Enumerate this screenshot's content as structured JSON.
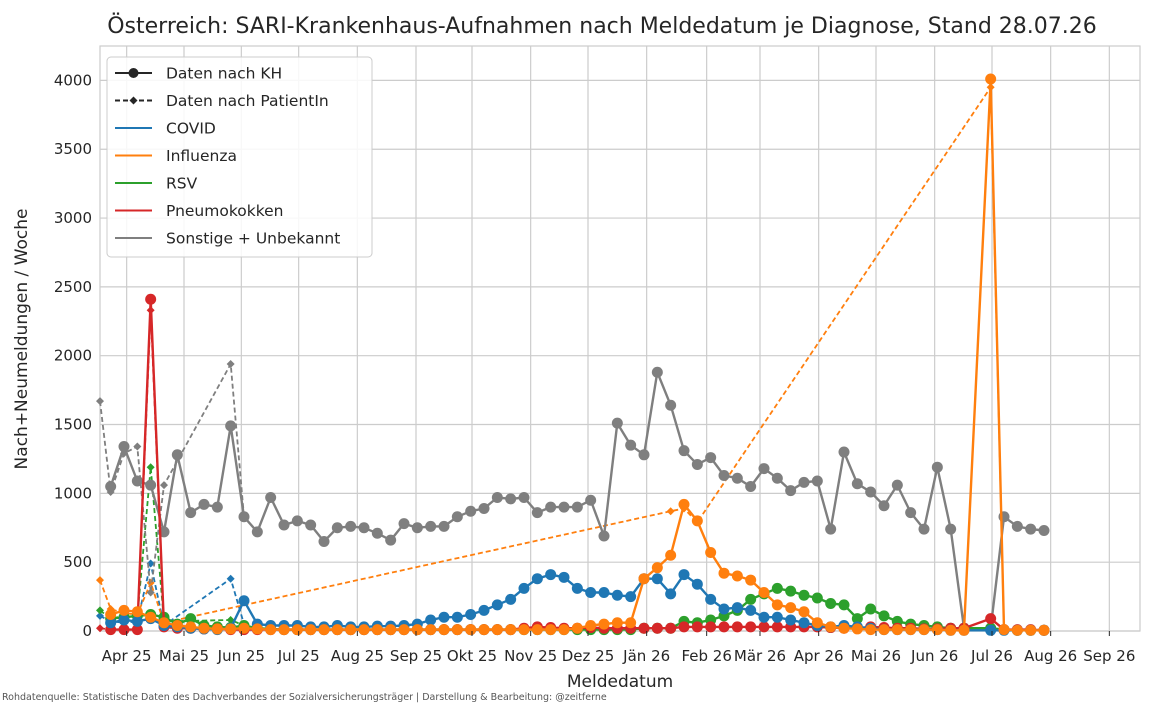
{
  "chart_data": {
    "type": "line",
    "title": "Österreich: SARI-Krankenhaus-Aufnahmen nach Meldedatum je Diagnose, Stand 28.07.26",
    "xlabel": "Meldedatum",
    "ylabel": "Nach+Neumeldungen / Woche",
    "ylim": [
      0,
      4250
    ],
    "y_ticks": [
      0,
      500,
      1000,
      1500,
      2000,
      2500,
      3000,
      3500,
      4000
    ],
    "x_ticks": [
      {
        "label": "Apr 25",
        "x": 2
      },
      {
        "label": "Mai 25",
        "x": 6.3
      },
      {
        "label": "Jun 25",
        "x": 10.6
      },
      {
        "label": "Jul 25",
        "x": 14.9
      },
      {
        "label": "Aug 25",
        "x": 19.3
      },
      {
        "label": "Sep 25",
        "x": 23.7
      },
      {
        "label": "Okt 25",
        "x": 27.9
      },
      {
        "label": "Nov 25",
        "x": 32.3
      },
      {
        "label": "Dez 25",
        "x": 36.6
      },
      {
        "label": "Jän 26",
        "x": 41.0
      },
      {
        "label": "Feb 26",
        "x": 45.5
      },
      {
        "label": "Mär 26",
        "x": 49.5
      },
      {
        "label": "Apr 26",
        "x": 53.9
      },
      {
        "label": "Mai 26",
        "x": 58.2
      },
      {
        "label": "Jun 26",
        "x": 62.6
      },
      {
        "label": "Jul 26",
        "x": 66.9
      },
      {
        "label": "Aug 26",
        "x": 71.3
      },
      {
        "label": "Sep 26",
        "x": 75.7
      }
    ],
    "xlim": [
      0,
      78
    ],
    "grid": true,
    "legend_position": "top-left",
    "series": [
      {
        "name": "COVID",
        "color": "#1f77b4",
        "style": "kh",
        "x": [
          0.8,
          1.8,
          2.8,
          3.8,
          4.8,
          5.8,
          6.8,
          7.8,
          8.8,
          9.8,
          10.8,
          11.8,
          12.8,
          13.8,
          14.8,
          15.8,
          16.8,
          17.8,
          18.8,
          19.8,
          20.8,
          21.8,
          22.8,
          23.8,
          24.8,
          25.8,
          26.8,
          27.8,
          28.8,
          29.8,
          30.8,
          31.8,
          32.8,
          33.8,
          34.8,
          35.8,
          36.8,
          37.8,
          38.8,
          39.8,
          40.8,
          41.8,
          42.8,
          43.8,
          44.8,
          45.8,
          46.8,
          47.8,
          48.8,
          49.8,
          50.8,
          51.8,
          52.8,
          53.8,
          54.8,
          55.8,
          56.8,
          57.8,
          58.8,
          59.8,
          60.8,
          61.8,
          62.8,
          63.8,
          64.8,
          66.8,
          67.8,
          68.8,
          69.8,
          70.8
        ],
        "values": [
          60,
          80,
          70,
          90,
          40,
          30,
          20,
          15,
          10,
          20,
          220,
          50,
          40,
          40,
          40,
          30,
          30,
          40,
          30,
          30,
          35,
          35,
          40,
          50,
          80,
          100,
          100,
          120,
          150,
          190,
          230,
          310,
          380,
          410,
          390,
          310,
          280,
          280,
          260,
          250,
          380,
          380,
          270,
          410,
          340,
          230,
          160,
          170,
          150,
          100,
          100,
          80,
          60,
          40,
          30,
          40,
          30,
          20,
          10,
          10,
          10,
          10,
          10,
          5,
          5,
          5,
          5,
          5,
          5,
          5
        ]
      },
      {
        "name": "Influenza",
        "color": "#ff7f0e",
        "style": "kh",
        "x": [
          0.8,
          1.8,
          2.8,
          3.8,
          4.8,
          5.8,
          6.8,
          7.8,
          8.8,
          9.8,
          10.8,
          11.8,
          12.8,
          13.8,
          14.8,
          15.8,
          16.8,
          17.8,
          18.8,
          19.8,
          20.8,
          21.8,
          22.8,
          23.8,
          24.8,
          25.8,
          26.8,
          27.8,
          28.8,
          29.8,
          30.8,
          31.8,
          32.8,
          33.8,
          34.8,
          35.8,
          36.8,
          37.8,
          38.8,
          39.8,
          40.8,
          41.8,
          42.8,
          43.8,
          44.8,
          45.8,
          46.8,
          47.8,
          48.8,
          49.8,
          50.8,
          51.8,
          52.8,
          53.8,
          54.8,
          55.8,
          56.8,
          57.8,
          58.8,
          59.8,
          60.8,
          61.8,
          62.8,
          63.8,
          64.8,
          66.8,
          67.8,
          68.8,
          69.8,
          70.8
        ],
        "values": [
          120,
          150,
          140,
          100,
          60,
          40,
          30,
          20,
          15,
          15,
          20,
          15,
          10,
          10,
          10,
          10,
          10,
          10,
          10,
          10,
          10,
          10,
          10,
          10,
          10,
          10,
          10,
          10,
          10,
          10,
          10,
          10,
          10,
          10,
          10,
          20,
          40,
          50,
          60,
          60,
          380,
          460,
          550,
          920,
          800,
          570,
          420,
          400,
          370,
          280,
          190,
          170,
          140,
          60,
          30,
          20,
          15,
          10,
          10,
          10,
          10,
          10,
          10,
          5,
          5,
          4010,
          10,
          5,
          5,
          5
        ]
      },
      {
        "name": "RSV",
        "color": "#2ca02c",
        "style": "kh",
        "x": [
          0.8,
          1.8,
          2.8,
          3.8,
          4.8,
          5.8,
          6.8,
          7.8,
          8.8,
          9.8,
          10.8,
          11.8,
          12.8,
          13.8,
          14.8,
          15.8,
          16.8,
          17.8,
          18.8,
          19.8,
          20.8,
          21.8,
          22.8,
          23.8,
          24.8,
          25.8,
          26.8,
          27.8,
          28.8,
          29.8,
          30.8,
          31.8,
          32.8,
          33.8,
          34.8,
          35.8,
          36.8,
          37.8,
          38.8,
          39.8,
          40.8,
          41.8,
          42.8,
          43.8,
          44.8,
          45.8,
          46.8,
          47.8,
          48.8,
          49.8,
          50.8,
          51.8,
          52.8,
          53.8,
          54.8,
          55.8,
          56.8,
          57.8,
          58.8,
          59.8,
          60.8,
          61.8,
          62.8,
          63.8,
          64.8,
          66.8,
          67.8,
          68.8,
          69.8,
          70.8
        ],
        "values": [
          90,
          100,
          110,
          120,
          100,
          50,
          90,
          40,
          30,
          25,
          40,
          20,
          15,
          10,
          10,
          10,
          10,
          10,
          10,
          10,
          10,
          10,
          10,
          10,
          10,
          10,
          10,
          10,
          10,
          10,
          10,
          10,
          10,
          10,
          10,
          10,
          10,
          10,
          10,
          10,
          20,
          20,
          20,
          70,
          60,
          80,
          110,
          150,
          230,
          270,
          310,
          290,
          260,
          240,
          200,
          190,
          90,
          160,
          110,
          70,
          50,
          40,
          30,
          20,
          20,
          20,
          10,
          5,
          5,
          5
        ]
      },
      {
        "name": "Pneumokokken",
        "color": "#d62728",
        "style": "kh",
        "x": [
          0.8,
          1.8,
          2.8,
          3.8,
          4.8,
          5.8,
          6.8,
          7.8,
          8.8,
          9.8,
          10.8,
          11.8,
          12.8,
          13.8,
          14.8,
          15.8,
          16.8,
          17.8,
          18.8,
          19.8,
          20.8,
          21.8,
          22.8,
          23.8,
          24.8,
          25.8,
          26.8,
          27.8,
          28.8,
          29.8,
          30.8,
          31.8,
          32.8,
          33.8,
          34.8,
          35.8,
          36.8,
          37.8,
          38.8,
          39.8,
          40.8,
          41.8,
          42.8,
          43.8,
          44.8,
          45.8,
          46.8,
          47.8,
          48.8,
          49.8,
          50.8,
          51.8,
          52.8,
          53.8,
          54.8,
          55.8,
          56.8,
          57.8,
          58.8,
          59.8,
          60.8,
          61.8,
          62.8,
          63.8,
          64.8,
          66.8,
          67.8,
          68.8,
          69.8,
          70.8
        ],
        "values": [
          10,
          10,
          10,
          2410,
          30,
          20,
          20,
          15,
          15,
          10,
          10,
          10,
          10,
          10,
          10,
          10,
          10,
          10,
          10,
          10,
          10,
          10,
          10,
          10,
          10,
          10,
          10,
          10,
          10,
          10,
          10,
          20,
          30,
          25,
          20,
          20,
          25,
          20,
          20,
          20,
          20,
          20,
          20,
          30,
          30,
          30,
          30,
          30,
          30,
          30,
          30,
          30,
          30,
          30,
          25,
          20,
          20,
          30,
          25,
          20,
          20,
          15,
          15,
          20,
          20,
          90,
          10,
          10,
          10,
          5
        ]
      },
      {
        "name": "Sonstige + Unbekannt",
        "color": "#7f7f7f",
        "style": "kh",
        "x": [
          0.8,
          1.8,
          2.8,
          3.8,
          4.8,
          5.8,
          6.8,
          7.8,
          8.8,
          9.8,
          10.8,
          11.8,
          12.8,
          13.8,
          14.8,
          15.8,
          16.8,
          17.8,
          18.8,
          19.8,
          20.8,
          21.8,
          22.8,
          23.8,
          24.8,
          25.8,
          26.8,
          27.8,
          28.8,
          29.8,
          30.8,
          31.8,
          32.8,
          33.8,
          34.8,
          35.8,
          36.8,
          37.8,
          38.8,
          39.8,
          40.8,
          41.8,
          42.8,
          43.8,
          44.8,
          45.8,
          46.8,
          47.8,
          48.8,
          49.8,
          50.8,
          51.8,
          52.8,
          53.8,
          54.8,
          55.8,
          56.8,
          57.8,
          58.8,
          59.8,
          60.8,
          61.8,
          62.8,
          63.8,
          64.8,
          66.8,
          67.8,
          68.8,
          69.8,
          70.8
        ],
        "values": [
          1050,
          1340,
          1090,
          1060,
          720,
          1280,
          860,
          920,
          900,
          1490,
          830,
          720,
          970,
          770,
          800,
          770,
          650,
          750,
          760,
          750,
          710,
          660,
          780,
          750,
          760,
          760,
          830,
          870,
          890,
          970,
          960,
          970,
          860,
          900,
          900,
          900,
          950,
          690,
          1510,
          1350,
          1280,
          1880,
          1640,
          1310,
          1210,
          1260,
          1130,
          1110,
          1050,
          1180,
          1110,
          1020,
          1080,
          1090,
          740,
          1300,
          1070,
          1010,
          910,
          1060,
          860,
          740,
          1190,
          740,
          20,
          20,
          830,
          760,
          740,
          730
        ]
      },
      {
        "name": "COVID (nach PatientIn)",
        "color": "#1f77b4",
        "style": "pat",
        "x": [
          0,
          0.8,
          1.8,
          2.8,
          3.8,
          4.8,
          9.8,
          10.8
        ],
        "values": [
          110,
          70,
          60,
          70,
          490,
          40,
          380,
          50
        ]
      },
      {
        "name": "Influenza (nach PatientIn)",
        "color": "#ff7f0e",
        "style": "pat",
        "x": [
          0,
          0.8,
          1.8,
          2.8,
          3.8,
          4.8,
          42.8,
          43.8,
          44.8,
          66.8,
          67.8
        ],
        "values": [
          370,
          160,
          130,
          120,
          350,
          60,
          870,
          890,
          790,
          3950,
          10
        ]
      },
      {
        "name": "RSV (nach PatientIn)",
        "color": "#2ca02c",
        "style": "pat",
        "x": [
          0,
          0.8,
          1.8,
          2.8,
          3.8,
          4.8,
          9.8,
          10.8
        ],
        "values": [
          150,
          90,
          110,
          100,
          1190,
          70,
          80,
          40
        ]
      },
      {
        "name": "Pneumokokken (nach PatientIn)",
        "color": "#d62728",
        "style": "pat",
        "x": [
          0,
          0.8,
          1.8,
          2.8,
          3.8,
          4.8
        ],
        "values": [
          20,
          10,
          10,
          10,
          2330,
          20
        ]
      },
      {
        "name": "Sonstige (nach PatientIn)",
        "color": "#7f7f7f",
        "style": "pat",
        "x": [
          0,
          0.8,
          1.8,
          2.8,
          3.8,
          4.8,
          9.8,
          10.8
        ],
        "values": [
          1670,
          1010,
          1290,
          1340,
          280,
          1060,
          1940,
          830
        ]
      }
    ],
    "legend": [
      {
        "label": "Daten nach KH",
        "kind": "kh",
        "color": "#262626"
      },
      {
        "label": "Daten nach PatientIn",
        "kind": "pat",
        "color": "#262626"
      },
      {
        "label": "COVID",
        "kind": "line",
        "color": "#1f77b4"
      },
      {
        "label": "Influenza",
        "kind": "line",
        "color": "#ff7f0e"
      },
      {
        "label": "RSV",
        "kind": "line",
        "color": "#2ca02c"
      },
      {
        "label": "Pneumokokken",
        "kind": "line",
        "color": "#d62728"
      },
      {
        "label": "Sonstige + Unbekannt",
        "kind": "line",
        "color": "#7f7f7f"
      }
    ]
  },
  "footer": "Rohdatenquelle: Statistische Daten des Dachverbandes der Sozialversicherungsträger | Darstellung & Bearbeitung: @zeitferne"
}
